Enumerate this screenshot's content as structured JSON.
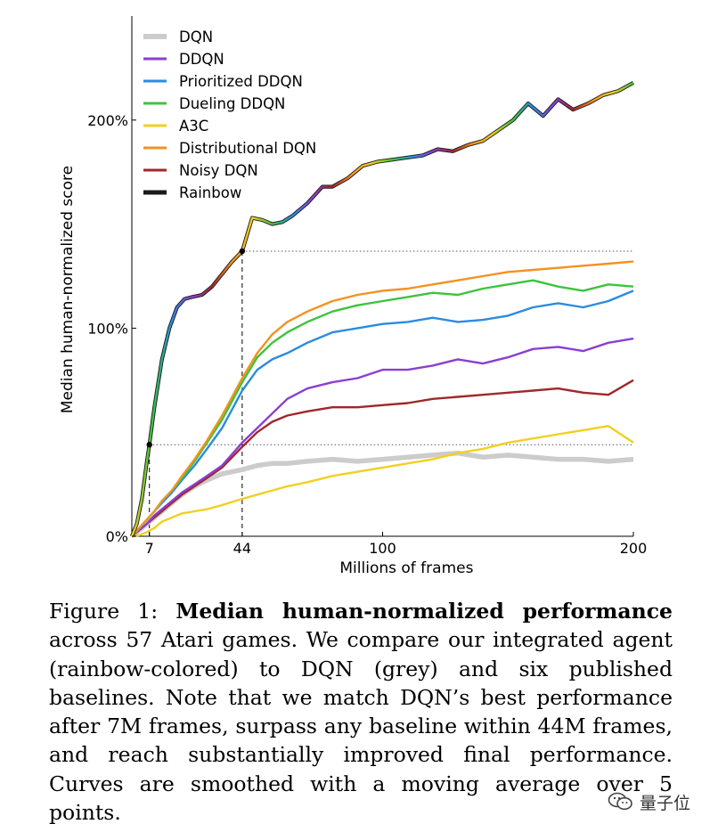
{
  "chart_data": {
    "type": "line",
    "xlabel": "Millions of frames",
    "ylabel": "Median human-normalized score",
    "xlim": [
      0,
      200
    ],
    "ylim": [
      0,
      250
    ],
    "xticks": [
      {
        "value": 7,
        "label": "7"
      },
      {
        "value": 44,
        "label": "44"
      },
      {
        "value": 100,
        "label": "100"
      },
      {
        "value": 200,
        "label": "200"
      }
    ],
    "yticks": [
      {
        "value": 0,
        "label": "0%"
      },
      {
        "value": 100,
        "label": "100%"
      },
      {
        "value": 200,
        "label": "200%"
      }
    ],
    "reference_lines": [
      {
        "kind": "horizontal",
        "y": 44,
        "x_from": 7,
        "x_to": 200
      },
      {
        "kind": "horizontal",
        "y": 137,
        "x_from": 44,
        "x_to": 200
      },
      {
        "kind": "vertical",
        "x": 7,
        "y_from": 0,
        "y_to": 44
      },
      {
        "kind": "vertical",
        "x": 44,
        "y_from": 0,
        "y_to": 137
      }
    ],
    "markers": [
      {
        "x": 7,
        "y": 44
      },
      {
        "x": 44,
        "y": 137
      }
    ],
    "legend_position": "top-left",
    "series": [
      {
        "name": "DQN",
        "color": "#cccccc",
        "style": "thick",
        "x": [
          0,
          3,
          6,
          9,
          12,
          16,
          20,
          25,
          30,
          36,
          44,
          50,
          56,
          62,
          70,
          80,
          90,
          100,
          110,
          120,
          130,
          140,
          150,
          160,
          170,
          180,
          190,
          200
        ],
        "y": [
          0,
          3,
          6,
          9,
          12,
          16,
          20,
          24,
          27,
          30,
          32,
          34,
          35,
          35,
          36,
          37,
          36,
          37,
          38,
          39,
          40,
          38,
          39,
          38,
          37,
          37,
          36,
          37
        ]
      },
      {
        "name": "DDQN",
        "color": "#8a3fd1",
        "x": [
          0,
          3,
          6,
          9,
          12,
          16,
          20,
          25,
          30,
          36,
          44,
          50,
          56,
          62,
          70,
          80,
          90,
          100,
          110,
          120,
          130,
          140,
          150,
          160,
          170,
          180,
          190,
          200
        ],
        "y": [
          0,
          3,
          6,
          10,
          13,
          17,
          21,
          25,
          29,
          34,
          45,
          52,
          59,
          66,
          71,
          74,
          76,
          80,
          80,
          82,
          85,
          83,
          86,
          90,
          91,
          89,
          93,
          95
        ]
      },
      {
        "name": "Prioritized DDQN",
        "color": "#2b8be0",
        "x": [
          0,
          3,
          6,
          9,
          12,
          16,
          20,
          25,
          30,
          36,
          44,
          50,
          56,
          62,
          70,
          80,
          90,
          100,
          110,
          120,
          130,
          140,
          150,
          160,
          170,
          180,
          190,
          200
        ],
        "y": [
          0,
          4,
          8,
          12,
          16,
          21,
          27,
          34,
          42,
          52,
          70,
          80,
          85,
          88,
          93,
          98,
          100,
          102,
          103,
          105,
          103,
          104,
          106,
          110,
          112,
          110,
          113,
          118
        ]
      },
      {
        "name": "Dueling DDQN",
        "color": "#3cc43c",
        "x": [
          0,
          3,
          6,
          9,
          12,
          16,
          20,
          25,
          30,
          36,
          44,
          50,
          56,
          62,
          70,
          80,
          90,
          100,
          110,
          120,
          130,
          140,
          150,
          160,
          170,
          180,
          190,
          200
        ],
        "y": [
          0,
          4,
          8,
          12,
          17,
          22,
          28,
          36,
          45,
          56,
          74,
          86,
          93,
          98,
          103,
          108,
          111,
          113,
          115,
          117,
          116,
          119,
          121,
          123,
          120,
          118,
          121,
          120
        ]
      },
      {
        "name": "A3C",
        "color": "#f2d020",
        "x": [
          0,
          3,
          6,
          9,
          12,
          16,
          20,
          25,
          30,
          36,
          44,
          50,
          56,
          62,
          70,
          80,
          90,
          100,
          110,
          120,
          130,
          140,
          150,
          160,
          170,
          180,
          190,
          200
        ],
        "y": [
          0,
          0.5,
          2,
          4,
          7,
          9,
          11,
          12,
          13,
          15,
          18,
          20,
          22,
          24,
          26,
          29,
          31,
          33,
          35,
          37,
          40,
          42,
          45,
          47,
          49,
          51,
          53,
          45
        ]
      },
      {
        "name": "Distributional DQN",
        "color": "#f39221",
        "x": [
          0,
          3,
          6,
          9,
          12,
          16,
          20,
          25,
          30,
          36,
          44,
          50,
          56,
          62,
          70,
          80,
          90,
          100,
          110,
          120,
          130,
          140,
          150,
          160,
          170,
          180,
          190,
          200
        ],
        "y": [
          0,
          4,
          8,
          12,
          17,
          22,
          29,
          37,
          46,
          58,
          76,
          88,
          97,
          103,
          108,
          113,
          116,
          118,
          119,
          121,
          123,
          125,
          127,
          128,
          129,
          130,
          131,
          132
        ]
      },
      {
        "name": "Noisy DQN",
        "color": "#a0282a",
        "x": [
          0,
          3,
          6,
          9,
          12,
          16,
          20,
          25,
          30,
          36,
          44,
          50,
          56,
          62,
          70,
          80,
          90,
          100,
          110,
          120,
          130,
          140,
          150,
          160,
          170,
          180,
          190,
          200
        ],
        "y": [
          0,
          3,
          6,
          9,
          12,
          16,
          20,
          24,
          28,
          33,
          43,
          50,
          55,
          58,
          60,
          62,
          62,
          63,
          64,
          66,
          67,
          68,
          69,
          70,
          71,
          69,
          68,
          75
        ]
      },
      {
        "name": "Rainbow",
        "color": "rainbow",
        "x": [
          0,
          2,
          4,
          6,
          7,
          9,
          12,
          15,
          18,
          21,
          24,
          28,
          32,
          36,
          40,
          44,
          48,
          52,
          56,
          60,
          64,
          70,
          76,
          80,
          86,
          92,
          98,
          104,
          110,
          116,
          122,
          128,
          134,
          140,
          146,
          152,
          158,
          164,
          170,
          176,
          182,
          188,
          194,
          200
        ],
        "y": [
          0,
          6,
          18,
          36,
          44,
          62,
          85,
          100,
          110,
          114,
          115,
          116,
          120,
          126,
          132,
          137,
          153,
          152,
          150,
          151,
          154,
          160,
          168,
          168,
          172,
          178,
          180,
          181,
          182,
          183,
          186,
          185,
          188,
          190,
          195,
          200,
          208,
          202,
          210,
          205,
          208,
          212,
          214,
          218
        ]
      }
    ]
  },
  "caption": {
    "prefix": "Figure 1: ",
    "bold": "Median human-normalized performance",
    "rest": " across 57 Atari games. We compare our integrated agent (rainbow-colored) to DQN (grey) and six published baselines. Note that we match DQN’s best performance after 7M frames, surpass any baseline within 44M frames, and reach substantially improved final performance. Curves are smoothed with a moving average over 5 points."
  },
  "watermark": {
    "text": "量子位"
  },
  "rainbow_colors": [
    "#f2d020",
    "#3cc43c",
    "#2b8be0",
    "#8a3fd1",
    "#a0282a",
    "#f39221"
  ]
}
